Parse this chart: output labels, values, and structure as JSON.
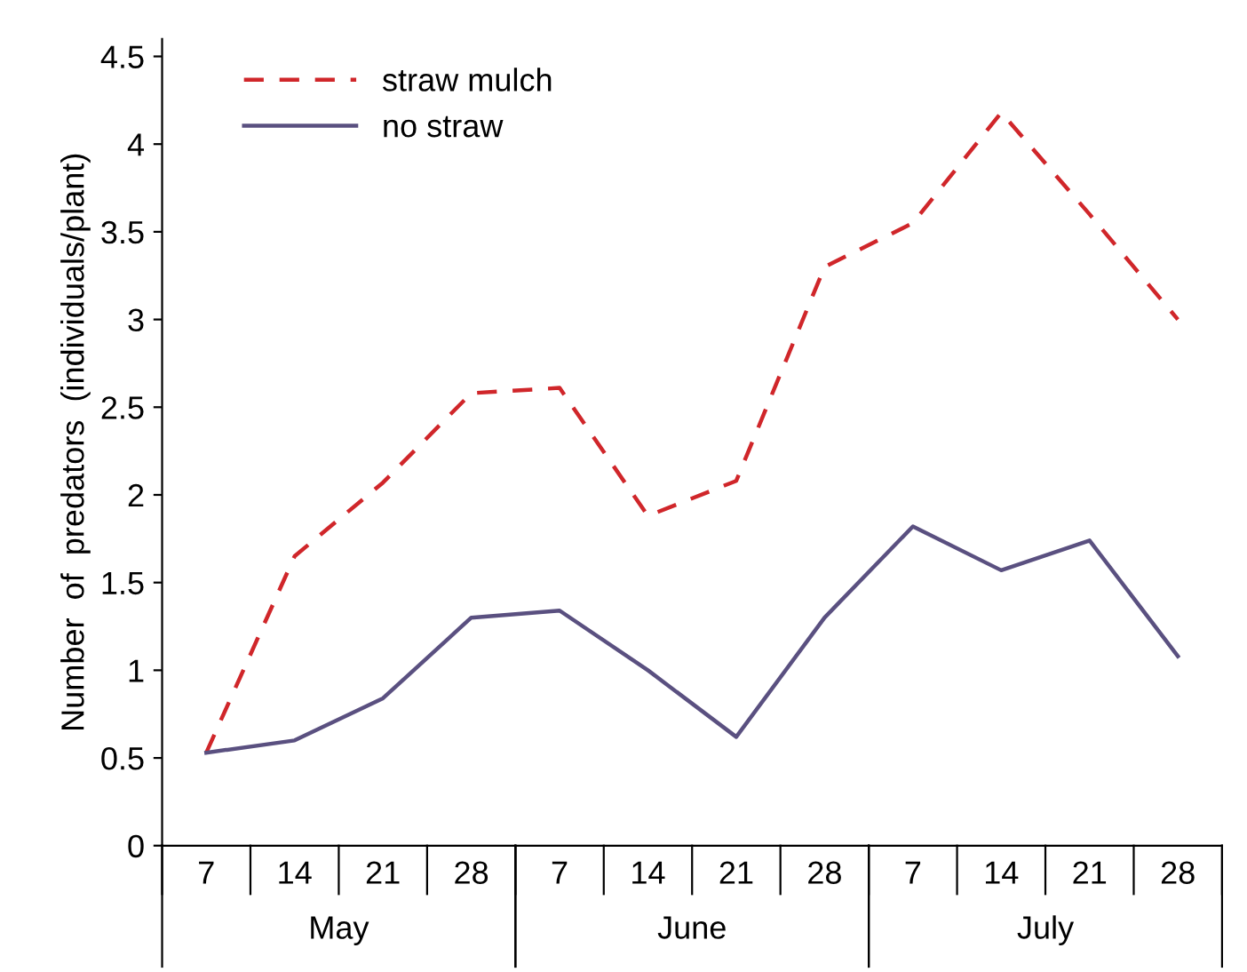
{
  "chart_data": {
    "type": "line",
    "ylabel": "Number  of  predators  (individuals/plant)",
    "categories": [
      "7",
      "14",
      "21",
      "28",
      "7",
      "14",
      "21",
      "28",
      "7",
      "14",
      "21",
      "28"
    ],
    "series": [
      {
        "name": "straw mulch",
        "color": "#d0262a",
        "line_style": "dashed",
        "values": [
          0.53,
          1.65,
          2.07,
          2.58,
          2.61,
          1.88,
          2.08,
          3.3,
          3.55,
          4.18,
          3.6,
          3.0
        ]
      },
      {
        "name": "no straw",
        "color": "#5a5080",
        "line_style": "solid",
        "values": [
          0.53,
          0.6,
          0.84,
          1.3,
          1.34,
          1.0,
          0.62,
          1.3,
          1.82,
          1.57,
          1.74,
          1.08
        ]
      }
    ],
    "annotations": [
      "May",
      "June",
      "July"
    ],
    "ylim": [
      0,
      4.6
    ],
    "yticks": [
      0,
      0.5,
      1,
      1.5,
      2,
      2.5,
      3,
      3.5,
      4,
      4.5
    ],
    "grid": false,
    "legend": "top left",
    "marker": "none"
  }
}
